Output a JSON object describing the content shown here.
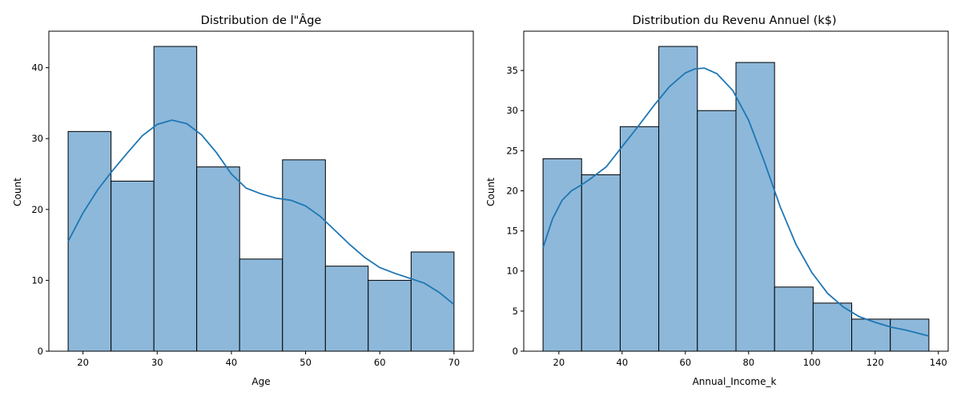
{
  "chart_data": [
    {
      "type": "bar",
      "title": "Distribution de l\"Âge",
      "xlabel": "Age",
      "ylabel": "Count",
      "xlim": [
        15.4,
        72.6
      ],
      "ylim": [
        0,
        45.15
      ],
      "x_ticks": [
        20,
        30,
        40,
        50,
        60,
        70
      ],
      "y_ticks": [
        0,
        10,
        20,
        30,
        40
      ],
      "bins": [
        {
          "start": 18.0,
          "end": 23.78,
          "value": 31
        },
        {
          "start": 23.78,
          "end": 29.56,
          "value": 24
        },
        {
          "start": 29.56,
          "end": 35.33,
          "value": 43
        },
        {
          "start": 35.33,
          "end": 41.11,
          "value": 26
        },
        {
          "start": 41.11,
          "end": 46.89,
          "value": 13
        },
        {
          "start": 46.89,
          "end": 52.67,
          "value": 27
        },
        {
          "start": 52.67,
          "end": 58.44,
          "value": 12
        },
        {
          "start": 58.44,
          "end": 64.22,
          "value": 10
        },
        {
          "start": 64.22,
          "end": 70.0,
          "value": 14
        }
      ],
      "kde": {
        "x": [
          18,
          20,
          22,
          24,
          26,
          28,
          30,
          32,
          34,
          36,
          38,
          40,
          42,
          44,
          46,
          48,
          50,
          52,
          54,
          56,
          58,
          60,
          62,
          64,
          66,
          68,
          70
        ],
        "y": [
          15.5,
          19.5,
          22.8,
          25.5,
          28.0,
          30.4,
          32.0,
          32.6,
          32.1,
          30.5,
          28.0,
          25.0,
          23.0,
          22.2,
          21.6,
          21.3,
          20.5,
          19.0,
          17.0,
          15.0,
          13.2,
          11.8,
          11.0,
          10.3,
          9.6,
          8.3,
          6.6
        ]
      }
    },
    {
      "type": "bar",
      "title": "Distribution du Revenu Annuel (k$)",
      "xlabel": "Annual_Income_k",
      "ylabel": "Count",
      "xlim": [
        8.9,
        143.1
      ],
      "ylim": [
        0,
        39.9
      ],
      "x_ticks": [
        20,
        40,
        60,
        80,
        100,
        120,
        140
      ],
      "y_ticks": [
        0,
        5,
        10,
        15,
        20,
        25,
        30,
        35
      ],
      "bins": [
        {
          "start": 15.0,
          "end": 27.2,
          "value": 24
        },
        {
          "start": 27.2,
          "end": 39.4,
          "value": 22
        },
        {
          "start": 39.4,
          "end": 51.6,
          "value": 28
        },
        {
          "start": 51.6,
          "end": 63.8,
          "value": 38
        },
        {
          "start": 63.8,
          "end": 76.0,
          "value": 30
        },
        {
          "start": 76.0,
          "end": 88.2,
          "value": 36
        },
        {
          "start": 88.2,
          "end": 100.4,
          "value": 8
        },
        {
          "start": 100.4,
          "end": 112.6,
          "value": 6
        },
        {
          "start": 112.6,
          "end": 124.8,
          "value": 4
        },
        {
          "start": 124.8,
          "end": 137.0,
          "value": 4
        }
      ],
      "kde": {
        "x": [
          15,
          18,
          21,
          24,
          27,
          30,
          35,
          40,
          45,
          50,
          55,
          60,
          63,
          66,
          70,
          75,
          80,
          85,
          90,
          95,
          100,
          105,
          110,
          115,
          120,
          125,
          130,
          137
        ],
        "y": [
          12.9,
          16.5,
          18.8,
          20.0,
          20.7,
          21.5,
          23.0,
          25.5,
          28.0,
          30.6,
          33.0,
          34.7,
          35.2,
          35.3,
          34.6,
          32.5,
          28.8,
          23.6,
          18.0,
          13.3,
          9.8,
          7.2,
          5.5,
          4.3,
          3.6,
          3.0,
          2.6,
          1.9
        ]
      }
    }
  ]
}
